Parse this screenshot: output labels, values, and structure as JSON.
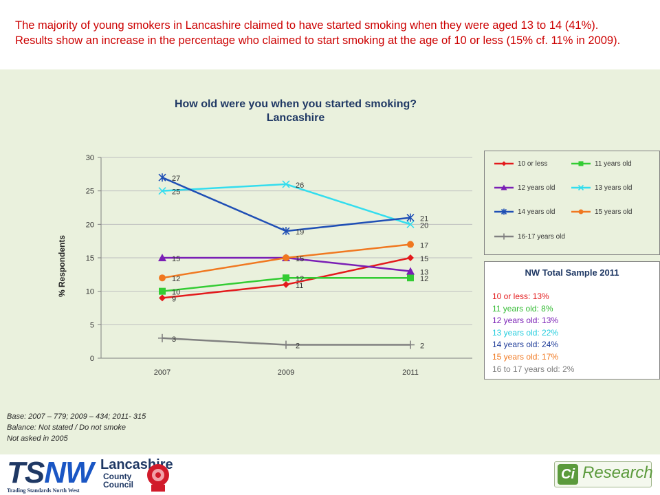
{
  "headline": "The majority of young smokers in Lancashire claimed to have started smoking when they were aged 13 to 14 (41%). Results show an increase in the percentage who claimed to start smoking at the age of 10 or less (15% cf. 11% in 2009).",
  "chart_data": {
    "type": "line",
    "title": "How old were you when you started smoking?",
    "subtitle": "Lancashire",
    "ylabel": "% Respondents",
    "xlabel": "",
    "categories": [
      "2007",
      "2009",
      "2011"
    ],
    "ylim": [
      0,
      30
    ],
    "yticks": [
      0,
      5,
      10,
      15,
      20,
      25,
      30
    ],
    "legend_position": "right",
    "series": [
      {
        "name": "10 or less",
        "values": [
          9,
          11,
          15
        ],
        "color": "#e31a1c",
        "marker": "diamond"
      },
      {
        "name": "11 years old",
        "values": [
          10,
          12,
          12
        ],
        "color": "#33cc33",
        "marker": "square"
      },
      {
        "name": "12 years old",
        "values": [
          15,
          15,
          13
        ],
        "color": "#7a1fb5",
        "marker": "triangle"
      },
      {
        "name": "13 years old",
        "values": [
          25,
          26,
          20
        ],
        "color": "#33ddee",
        "marker": "x"
      },
      {
        "name": "14 years old",
        "values": [
          27,
          19,
          21
        ],
        "color": "#1f4fb5",
        "marker": "star"
      },
      {
        "name": "15 years old",
        "values": [
          12,
          15,
          17
        ],
        "color": "#f07820",
        "marker": "circle"
      },
      {
        "name": "16-17 years old",
        "values": [
          3,
          2,
          2
        ],
        "color": "#808080",
        "marker": "plus"
      }
    ]
  },
  "nw_box": {
    "title": "NW Total Sample 2011",
    "lines": [
      {
        "text": "10 or less: 13%",
        "color": "#e31a1c"
      },
      {
        "text": "11 years old: 8%",
        "color": "#33bb33"
      },
      {
        "text": "12 years old: 13%",
        "color": "#7a1fb5"
      },
      {
        "text": "13 years old: 22%",
        "color": "#22ccdd"
      },
      {
        "text": "14 years old: 24%",
        "color": "#1f3c99"
      },
      {
        "text": "15 years old: 17%",
        "color": "#f07820"
      },
      {
        "text": "16 to 17 years old: 2%",
        "color": "#808080"
      }
    ]
  },
  "notes": [
    "Base: 2007 – 779; 2009 – 434; 2011- 315",
    "Balance: Not stated / Do not smoke",
    "Not asked in 2005"
  ],
  "footer": {
    "tsnw_ts": "TS",
    "tsnw_nw": "NW",
    "tsnw_sub": "Trading Standards North West",
    "lancs_main": "Lancashire",
    "lancs_sub1": "County",
    "lancs_sub2": "Council",
    "ci_badge": "Ci",
    "ci_word": "Research"
  }
}
